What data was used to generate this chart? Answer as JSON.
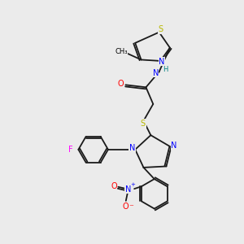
{
  "bg_color": "#ebebeb",
  "bond_color": "#1a1a1a",
  "colors": {
    "N": "#0000ff",
    "O": "#ff0000",
    "S": "#b8b800",
    "F": "#ff00ff",
    "H": "#008080",
    "C": "#1a1a1a"
  }
}
